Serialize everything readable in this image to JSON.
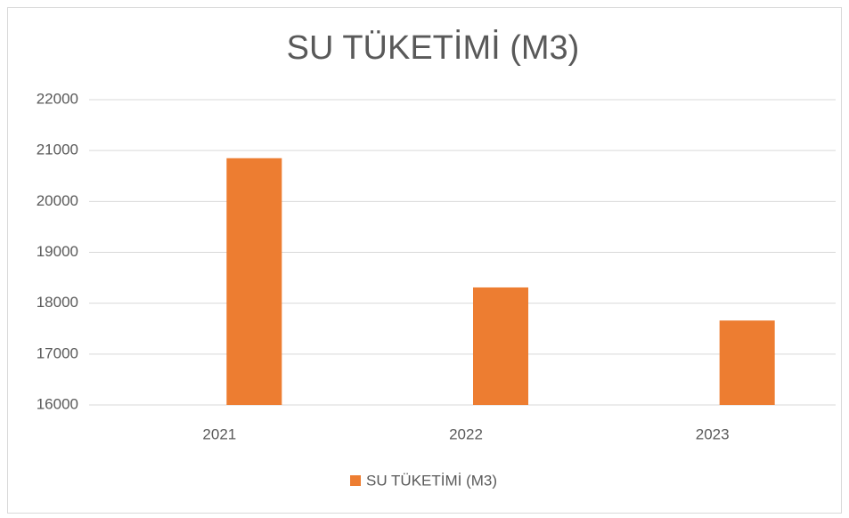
{
  "chart_data": {
    "type": "bar",
    "title": "SU TÜKETİMİ (M3)",
    "categories": [
      "2021",
      "2022",
      "2023"
    ],
    "series": [
      {
        "name": "SU TÜKETİMİ (M3)",
        "color": "#ed7d31",
        "values": [
          20850,
          18310,
          17660
        ]
      }
    ],
    "ylim": [
      16000,
      22000
    ],
    "yticks": [
      16000,
      17000,
      18000,
      19000,
      20000,
      21000,
      22000
    ],
    "grid": true,
    "legend": "bottom"
  }
}
